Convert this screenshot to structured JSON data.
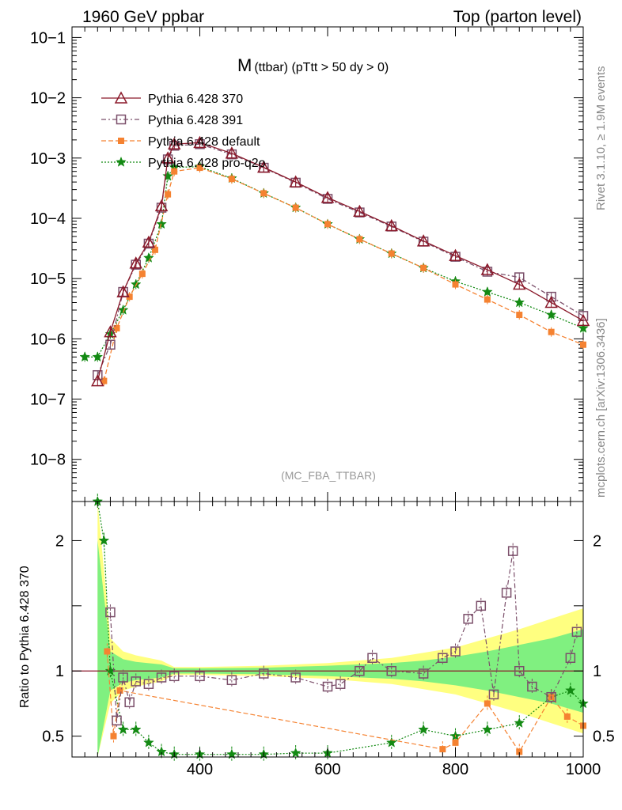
{
  "header": {
    "left": "1960 GeV ppbar",
    "right": "Top (parton level)"
  },
  "side_labels": {
    "rivet": "Rivet 3.1.10, ≥ 1.9M events",
    "mcplots": "mcplots.cern.ch [arXiv:1306.3436]"
  },
  "colors": {
    "p370": "#8b1a2b",
    "p391": "#7b4f6a",
    "pdefault": "#f58231",
    "pproq2o": "#138a13",
    "band_yellow": "#ffff80",
    "band_green": "#80f080"
  },
  "chart_data": [
    {
      "type": "line",
      "panel": "main",
      "title_main": "M",
      "title_sub": "(ttbar) (pTtt > 50 dy > 0)",
      "watermark": "(MC_FBA_TTBAR)",
      "yscale": "log",
      "xlim": [
        200,
        1000
      ],
      "ylim": [
        2e-09,
        0.15
      ],
      "ytick_labels": [
        "10−8",
        "10−7",
        "10−6",
        "10−5",
        "10−4",
        "10−3",
        "10−2",
        "10−1"
      ],
      "legend_position": "top-left",
      "series": [
        {
          "key": "p370",
          "name": "Pythia 6.428 370",
          "marker": "triangle",
          "x": [
            240,
            260,
            280,
            300,
            320,
            340,
            350,
            360,
            400,
            450,
            500,
            550,
            600,
            650,
            700,
            750,
            800,
            850,
            900,
            950,
            1000
          ],
          "y": [
            2e-07,
            1.3e-06,
            6e-06,
            1.8e-05,
            4e-05,
            0.00016,
            0.001,
            0.0017,
            0.0018,
            0.0012,
            0.0007,
            0.0004,
            0.00022,
            0.00013,
            7.5e-05,
            4.2e-05,
            2.4e-05,
            1.4e-05,
            8e-06,
            4e-06,
            2e-06
          ]
        },
        {
          "key": "p391",
          "name": "Pythia 6.428 391",
          "marker": "square",
          "x": [
            240,
            260,
            280,
            300,
            320,
            340,
            350,
            360,
            400,
            450,
            500,
            550,
            600,
            650,
            700,
            750,
            800,
            850,
            900,
            950,
            1000
          ],
          "y": [
            2.5e-07,
            8e-07,
            6e-06,
            1.7e-05,
            3.8e-05,
            0.00015,
            0.00095,
            0.0016,
            0.0017,
            0.00115,
            0.00069,
            0.00039,
            0.00021,
            0.000125,
            7.3e-05,
            4.1e-05,
            2.3e-05,
            1.3e-05,
            1.05e-05,
            5e-06,
            2.4e-06
          ]
        },
        {
          "key": "pdefault",
          "name": "Pythia 6.428 default",
          "marker": "filled-square",
          "x": [
            250,
            270,
            290,
            310,
            330,
            350,
            360,
            400,
            450,
            500,
            550,
            600,
            650,
            700,
            750,
            800,
            850,
            900,
            950,
            1000
          ],
          "y": [
            2e-07,
            1.5e-06,
            5e-06,
            1.2e-05,
            3e-05,
            0.00025,
            0.0006,
            0.00069,
            0.00045,
            0.00026,
            0.00015,
            8e-05,
            4.5e-05,
            2.6e-05,
            1.5e-05,
            8e-06,
            4.5e-06,
            2.5e-06,
            1.3e-06,
            8e-07
          ]
        },
        {
          "key": "pproq2o",
          "name": "Pythia 6.428 pro-q2o",
          "marker": "star",
          "x": [
            220,
            240,
            260,
            280,
            300,
            320,
            340,
            350,
            360,
            400,
            450,
            500,
            550,
            600,
            650,
            700,
            750,
            800,
            850,
            900,
            950,
            1000
          ],
          "y": [
            5e-07,
            5e-07,
            1.2e-06,
            3e-06,
            8e-06,
            2.2e-05,
            8e-05,
            0.0005,
            0.0007,
            0.00072,
            0.00046,
            0.00026,
            0.00015,
            8e-05,
            4.5e-05,
            2.6e-05,
            1.5e-05,
            9e-06,
            6e-06,
            4e-06,
            2.5e-06,
            1.5e-06
          ]
        }
      ]
    },
    {
      "type": "line",
      "panel": "ratio",
      "ylabel": "Ratio to Pythia 6.428 370",
      "xlim": [
        200,
        1000
      ],
      "ylim": [
        0.34,
        2.3
      ],
      "ytick_labels": [
        "0.5",
        "1",
        "2"
      ],
      "xtick_labels": [
        "400",
        "600",
        "800",
        "1000"
      ],
      "reference_line": 1,
      "band": {
        "x": [
          240,
          260,
          280,
          300,
          340,
          360,
          400,
          500,
          600,
          700,
          750,
          800,
          850,
          900,
          950,
          1000
        ],
        "yellow_half": [
          1.3,
          0.25,
          0.15,
          0.12,
          0.08,
          0.03,
          0.03,
          0.04,
          0.06,
          0.1,
          0.14,
          0.18,
          0.25,
          0.32,
          0.4,
          0.48
        ],
        "green_half": [
          1.0,
          0.15,
          0.09,
          0.07,
          0.05,
          0.02,
          0.02,
          0.025,
          0.04,
          0.06,
          0.08,
          0.11,
          0.15,
          0.2,
          0.25,
          0.32
        ]
      },
      "series": [
        {
          "key": "p391",
          "name": "Pythia 6.428 391",
          "marker": "square",
          "x": [
            260,
            270,
            280,
            290,
            300,
            320,
            340,
            360,
            400,
            450,
            500,
            550,
            600,
            620,
            650,
            670,
            700,
            750,
            780,
            800,
            820,
            840,
            860,
            880,
            890,
            900,
            920,
            950,
            980,
            990
          ],
          "y": [
            1.45,
            0.62,
            0.95,
            0.76,
            0.92,
            0.9,
            0.95,
            0.96,
            0.96,
            0.93,
            0.98,
            0.95,
            0.88,
            0.9,
            1.0,
            1.1,
            1.0,
            0.98,
            1.1,
            1.15,
            1.4,
            1.5,
            0.82,
            1.6,
            1.92,
            1.0,
            0.88,
            0.8,
            1.1,
            1.3
          ]
        },
        {
          "key": "pdefault",
          "name": "Pythia 6.428 default",
          "marker": "filled-square",
          "x": [
            255,
            265,
            275,
            780,
            800,
            850,
            900,
            950,
            975,
            1000
          ],
          "y": [
            1.15,
            0.5,
            0.85,
            0.4,
            0.45,
            0.75,
            0.38,
            0.8,
            0.65,
            0.58
          ]
        },
        {
          "key": "pproq2o",
          "name": "Pythia 6.428 pro-q2o",
          "marker": "star",
          "x": [
            240,
            250,
            260,
            280,
            300,
            320,
            340,
            360,
            400,
            450,
            500,
            550,
            600,
            700,
            750,
            800,
            850,
            900,
            950,
            980,
            1000
          ],
          "y": [
            2.3,
            2.0,
            1.0,
            0.55,
            0.55,
            0.45,
            0.38,
            0.36,
            0.36,
            0.36,
            0.36,
            0.37,
            0.37,
            0.45,
            0.55,
            0.5,
            0.55,
            0.6,
            0.8,
            0.85,
            0.75
          ]
        }
      ]
    }
  ]
}
